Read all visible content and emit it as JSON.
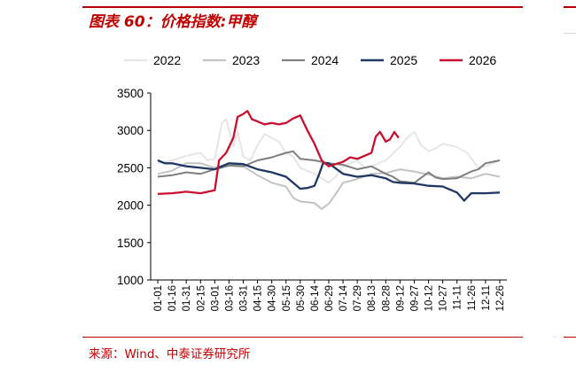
{
  "title": "图表 60：价格指数:甲醇",
  "source": "来源：Wind、中泰证券研究所",
  "chart_data": {
    "type": "line",
    "x_categories": [
      "01-01",
      "01-16",
      "01-31",
      "02-15",
      "03-01",
      "03-16",
      "03-31",
      "04-15",
      "04-30",
      "05-15",
      "05-30",
      "06-14",
      "06-29",
      "07-14",
      "07-29",
      "08-13",
      "08-28",
      "09-12",
      "09-27",
      "10-12",
      "10-27",
      "11-11",
      "11-26",
      "12-11",
      "12-26"
    ],
    "ylim": [
      1000,
      3500
    ],
    "yticks": [
      1000,
      1500,
      2000,
      2500,
      3000,
      3500
    ],
    "legend_position": "top",
    "series": [
      {
        "name": "2022",
        "color": "#e6e6e6",
        "points": [
          [
            0,
            2560
          ],
          [
            1,
            2600
          ],
          [
            2,
            2660
          ],
          [
            3,
            2700
          ],
          [
            3.5,
            2600
          ],
          [
            4,
            2620
          ],
          [
            4.5,
            3100
          ],
          [
            4.8,
            3150
          ],
          [
            5.3,
            2780
          ],
          [
            5.6,
            2980
          ],
          [
            6,
            2650
          ],
          [
            6.5,
            2600
          ],
          [
            7,
            2800
          ],
          [
            7.5,
            2950
          ],
          [
            8,
            2900
          ],
          [
            8.5,
            2850
          ],
          [
            9,
            2700
          ],
          [
            9.5,
            2650
          ],
          [
            10,
            2500
          ],
          [
            11,
            2420
          ],
          [
            12,
            2300
          ],
          [
            12.5,
            2380
          ],
          [
            13,
            2520
          ],
          [
            14,
            2600
          ],
          [
            14.5,
            2500
          ],
          [
            15,
            2520
          ],
          [
            16,
            2600
          ],
          [
            17,
            2780
          ],
          [
            17.5,
            2900
          ],
          [
            18,
            2980
          ],
          [
            18.5,
            2800
          ],
          [
            19,
            2720
          ],
          [
            19.5,
            2760
          ],
          [
            20,
            2820
          ],
          [
            21,
            2780
          ],
          [
            21.7,
            2700
          ],
          [
            22.5,
            2500
          ],
          [
            23,
            2520
          ],
          [
            24,
            2600
          ]
        ]
      },
      {
        "name": "2023",
        "color": "#c3c3c3",
        "points": [
          [
            0,
            2420
          ],
          [
            1,
            2460
          ],
          [
            2,
            2560
          ],
          [
            3,
            2560
          ],
          [
            4,
            2500
          ],
          [
            5,
            2560
          ],
          [
            6,
            2520
          ],
          [
            7,
            2400
          ],
          [
            8,
            2300
          ],
          [
            9,
            2250
          ],
          [
            9.5,
            2100
          ],
          [
            10,
            2050
          ],
          [
            11,
            2030
          ],
          [
            11.5,
            1950
          ],
          [
            12,
            2020
          ],
          [
            12.5,
            2150
          ],
          [
            13,
            2300
          ],
          [
            14,
            2350
          ],
          [
            15,
            2420
          ],
          [
            16,
            2430
          ],
          [
            17,
            2480
          ],
          [
            18,
            2450
          ],
          [
            19,
            2410
          ],
          [
            20,
            2360
          ],
          [
            21,
            2380
          ],
          [
            22,
            2360
          ],
          [
            23,
            2420
          ],
          [
            24,
            2380
          ]
        ]
      },
      {
        "name": "2024",
        "color": "#7f7f7f",
        "points": [
          [
            0,
            2380
          ],
          [
            1,
            2400
          ],
          [
            2,
            2440
          ],
          [
            3,
            2420
          ],
          [
            4,
            2480
          ],
          [
            5,
            2530
          ],
          [
            6,
            2520
          ],
          [
            7,
            2600
          ],
          [
            8,
            2640
          ],
          [
            9,
            2700
          ],
          [
            9.5,
            2720
          ],
          [
            10,
            2620
          ],
          [
            11,
            2600
          ],
          [
            12,
            2560
          ],
          [
            13,
            2540
          ],
          [
            14,
            2480
          ],
          [
            15,
            2520
          ],
          [
            16,
            2420
          ],
          [
            16.5,
            2380
          ],
          [
            17,
            2320
          ],
          [
            18,
            2300
          ],
          [
            19,
            2440
          ],
          [
            19.5,
            2370
          ],
          [
            20,
            2350
          ],
          [
            21,
            2360
          ],
          [
            22,
            2450
          ],
          [
            22.5,
            2480
          ],
          [
            23,
            2560
          ],
          [
            24,
            2600
          ]
        ]
      },
      {
        "name": "2025",
        "color": "#1f3864",
        "points": [
          [
            0,
            2600
          ],
          [
            0.5,
            2560
          ],
          [
            1,
            2560
          ],
          [
            2,
            2520
          ],
          [
            3,
            2500
          ],
          [
            4,
            2480
          ],
          [
            5,
            2560
          ],
          [
            6,
            2550
          ],
          [
            7,
            2480
          ],
          [
            8,
            2440
          ],
          [
            9,
            2380
          ],
          [
            9.5,
            2300
          ],
          [
            10,
            2220
          ],
          [
            10.5,
            2230
          ],
          [
            11,
            2260
          ],
          [
            11.3,
            2400
          ],
          [
            11.6,
            2560
          ],
          [
            12,
            2560
          ],
          [
            13,
            2420
          ],
          [
            14,
            2380
          ],
          [
            15,
            2400
          ],
          [
            16,
            2360
          ],
          [
            16.5,
            2310
          ],
          [
            17,
            2300
          ],
          [
            18,
            2290
          ],
          [
            19,
            2260
          ],
          [
            20,
            2250
          ],
          [
            21,
            2170
          ],
          [
            21.5,
            2060
          ],
          [
            22,
            2160
          ],
          [
            23,
            2160
          ],
          [
            24,
            2170
          ]
        ]
      },
      {
        "name": "2026",
        "color": "#c8102e",
        "points": [
          [
            0,
            2150
          ],
          [
            1,
            2160
          ],
          [
            2,
            2180
          ],
          [
            3,
            2160
          ],
          [
            4,
            2200
          ],
          [
            4.3,
            2600
          ],
          [
            4.8,
            2700
          ],
          [
            5.3,
            2900
          ],
          [
            5.6,
            3180
          ],
          [
            6,
            3220
          ],
          [
            6.3,
            3260
          ],
          [
            6.6,
            3150
          ],
          [
            7,
            3120
          ],
          [
            7.5,
            3080
          ],
          [
            8,
            3100
          ],
          [
            8.5,
            3080
          ],
          [
            9,
            3100
          ],
          [
            9.5,
            3160
          ],
          [
            10,
            3200
          ],
          [
            10.5,
            3000
          ],
          [
            11,
            2820
          ],
          [
            11.5,
            2600
          ],
          [
            12,
            2520
          ],
          [
            12.5,
            2550
          ],
          [
            13,
            2580
          ],
          [
            13.5,
            2640
          ],
          [
            14,
            2620
          ],
          [
            14.5,
            2660
          ],
          [
            15,
            2700
          ],
          [
            15.3,
            2920
          ],
          [
            15.6,
            2980
          ],
          [
            16,
            2850
          ],
          [
            16.3,
            2880
          ],
          [
            16.6,
            2980
          ],
          [
            16.9,
            2900
          ]
        ]
      }
    ]
  }
}
